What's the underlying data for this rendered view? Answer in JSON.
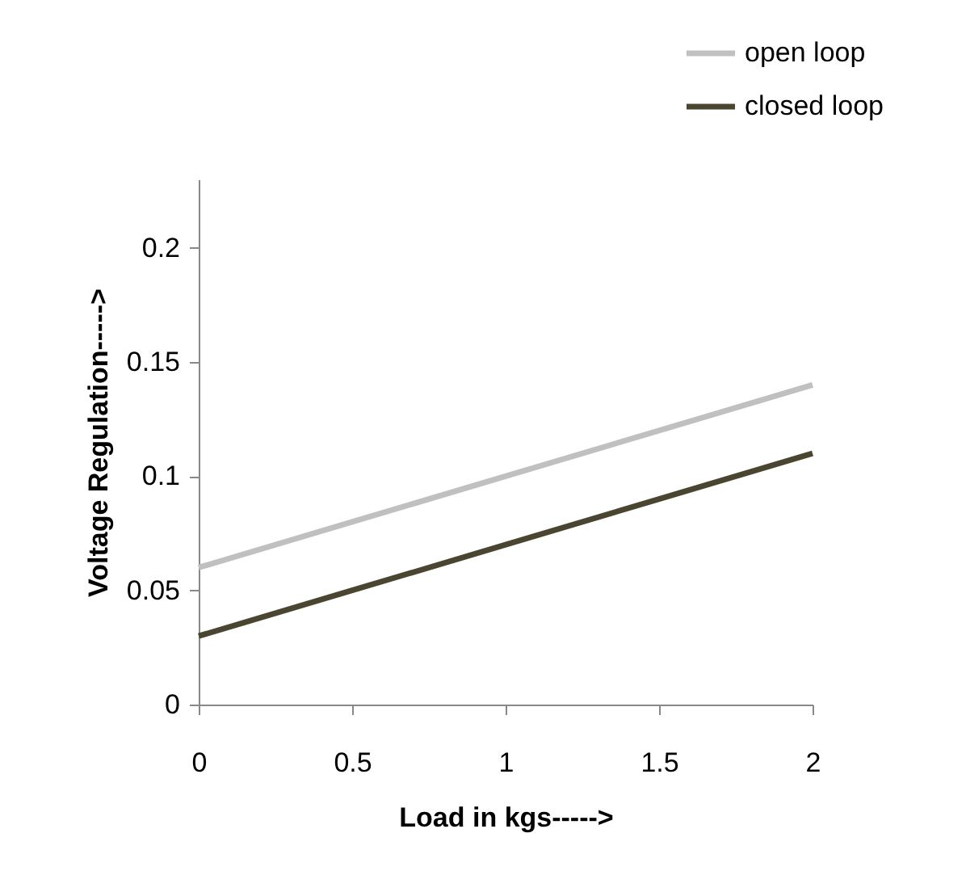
{
  "chart_data": {
    "type": "line",
    "xlabel": "Load in kgs----->",
    "ylabel": "Voltage Regulation----->",
    "x": [
      0,
      0.5,
      1,
      1.5,
      2
    ],
    "series": [
      {
        "name": "open loop",
        "color": "#c0c0c0",
        "values": [
          0.06,
          0.08,
          0.1,
          0.12,
          0.14
        ]
      },
      {
        "name": "closed loop",
        "color": "#4a4530",
        "values": [
          0.03,
          0.05,
          0.07,
          0.09,
          0.11
        ]
      }
    ],
    "xlim": [
      0,
      2
    ],
    "xticks": [
      0,
      0.5,
      1,
      1.5,
      2
    ],
    "ylim": [
      0,
      0.23
    ],
    "yticks": [
      0,
      0.05,
      0.1,
      0.15,
      0.2
    ],
    "grid": false,
    "legend": "top right",
    "marker": "none",
    "line_style": "solid"
  }
}
